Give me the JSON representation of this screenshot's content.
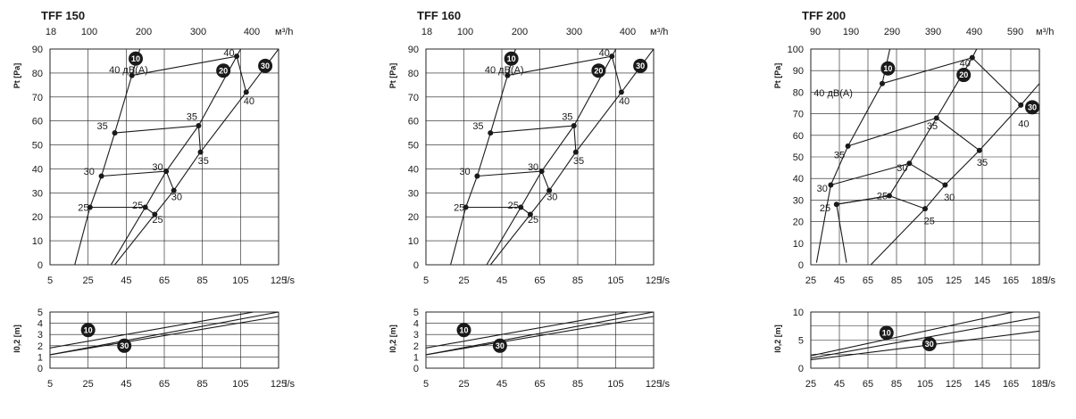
{
  "colors": {
    "ink": "#1a1a1a",
    "grid": "#1a1a1a",
    "paper": "#ffffff"
  },
  "chart_data": [
    {
      "type": "line",
      "title": "TFF 150",
      "xlabel": "l/s",
      "x2label": "м³/h",
      "ylabel": "Pt [Pa]",
      "xlim": [
        5,
        125
      ],
      "ylim": [
        0,
        90
      ],
      "xticks": [
        "5",
        "25",
        "45",
        "65",
        "85",
        "105",
        "125"
      ],
      "x2ticks": [
        "18",
        "100",
        "200",
        "300",
        "400"
      ],
      "yticks": [
        "0",
        "10",
        "20",
        "30",
        "40",
        "50",
        "60",
        "70",
        "80",
        "90"
      ],
      "grid": true,
      "annotation": "40 дB(A)",
      "series": [
        {
          "name": "10",
          "points": [
            [
              18,
              0
            ],
            [
              26,
              24
            ],
            [
              32,
              37
            ],
            [
              39,
              55
            ],
            [
              48,
              79
            ],
            [
              56,
              100
            ]
          ]
        },
        {
          "name": "20",
          "points": [
            [
              37,
              0
            ],
            [
              55,
              24
            ],
            [
              66,
              39
            ],
            [
              83,
              58
            ],
            [
              103,
              87
            ],
            [
              112,
              100
            ]
          ]
        },
        {
          "name": "30",
          "points": [
            [
              39,
              0
            ],
            [
              60,
              21
            ],
            [
              70,
              31
            ],
            [
              84,
              47
            ],
            [
              108,
              72
            ],
            [
              125,
              90
            ]
          ]
        }
      ],
      "levels": [
        {
          "label": "25",
          "points": [
            [
              26,
              24
            ],
            [
              55,
              24
            ],
            [
              60,
              21
            ]
          ]
        },
        {
          "label": "30",
          "points": [
            [
              32,
              37
            ],
            [
              66,
              39
            ],
            [
              70,
              31
            ]
          ]
        },
        {
          "label": "35",
          "points": [
            [
              39,
              55
            ],
            [
              83,
              58
            ],
            [
              84,
              47
            ]
          ]
        },
        {
          "label": "40",
          "points": [
            [
              48,
              79
            ],
            [
              103,
              87
            ],
            [
              108,
              72
            ]
          ]
        }
      ],
      "level_labels": [
        {
          "text": "25",
          "x": 22.5,
          "y": 24
        },
        {
          "text": "25",
          "x": 51,
          "y": 25
        },
        {
          "text": "25",
          "x": 61.5,
          "y": 19
        },
        {
          "text": "30",
          "x": 25.5,
          "y": 39
        },
        {
          "text": "30",
          "x": 61.5,
          "y": 41
        },
        {
          "text": "30",
          "x": 71.5,
          "y": 28.5
        },
        {
          "text": "35",
          "x": 32.5,
          "y": 58
        },
        {
          "text": "35",
          "x": 79.5,
          "y": 62
        },
        {
          "text": "35",
          "x": 85.5,
          "y": 43.5
        },
        {
          "text": "40",
          "x": 99,
          "y": 88.5
        },
        {
          "text": "40",
          "x": 109.5,
          "y": 68.5
        }
      ],
      "badges": [
        {
          "text": "10",
          "x": 50,
          "y": 86
        },
        {
          "text": "20",
          "x": 96,
          "y": 81
        },
        {
          "text": "30",
          "x": 118,
          "y": 83
        }
      ],
      "throw": {
        "ylabel": "l0,2 [m]",
        "xlabel": "l/s",
        "xlim": [
          5,
          125
        ],
        "ylim": [
          0,
          5
        ],
        "yticks": [
          "0",
          "1",
          "2",
          "3",
          "4",
          "5"
        ],
        "series": [
          {
            "name": "10",
            "points": [
              [
                5,
                1.8
              ],
              [
                125,
                5.4
              ]
            ]
          },
          {
            "name": "20",
            "points": [
              [
                5,
                1.2
              ],
              [
                125,
                5.0
              ]
            ]
          },
          {
            "name": "30",
            "points": [
              [
                5,
                1.2
              ],
              [
                125,
                4.6
              ]
            ]
          }
        ],
        "badges": [
          {
            "text": "10",
            "x": 25,
            "y": 3.4
          },
          {
            "text": "30",
            "x": 44,
            "y": 2.0
          }
        ]
      }
    },
    {
      "type": "line",
      "title": "TFF 160",
      "xlabel": "l/s",
      "x2label": "м³/h",
      "ylabel": "Pt [Pa]",
      "xlim": [
        5,
        125
      ],
      "ylim": [
        0,
        90
      ],
      "xticks": [
        "5",
        "25",
        "45",
        "65",
        "85",
        "105",
        "125"
      ],
      "x2ticks": [
        "18",
        "100",
        "200",
        "300",
        "400"
      ],
      "yticks": [
        "0",
        "10",
        "20",
        "30",
        "40",
        "50",
        "60",
        "70",
        "80",
        "90"
      ],
      "grid": true,
      "annotation": "40 дB(A)",
      "series": [
        {
          "name": "10",
          "points": [
            [
              18,
              0
            ],
            [
              26,
              24
            ],
            [
              32,
              37
            ],
            [
              39,
              55
            ],
            [
              48,
              79
            ],
            [
              56,
              100
            ]
          ]
        },
        {
          "name": "20",
          "points": [
            [
              37,
              0
            ],
            [
              55,
              24
            ],
            [
              66,
              39
            ],
            [
              83,
              58
            ],
            [
              103,
              87
            ],
            [
              112,
              100
            ]
          ]
        },
        {
          "name": "30",
          "points": [
            [
              39,
              0
            ],
            [
              60,
              21
            ],
            [
              70,
              31
            ],
            [
              84,
              47
            ],
            [
              108,
              72
            ],
            [
              125,
              90
            ]
          ]
        }
      ],
      "levels": [
        {
          "label": "25",
          "points": [
            [
              26,
              24
            ],
            [
              55,
              24
            ],
            [
              60,
              21
            ]
          ]
        },
        {
          "label": "30",
          "points": [
            [
              32,
              37
            ],
            [
              66,
              39
            ],
            [
              70,
              31
            ]
          ]
        },
        {
          "label": "35",
          "points": [
            [
              39,
              55
            ],
            [
              83,
              58
            ],
            [
              84,
              47
            ]
          ]
        },
        {
          "label": "40",
          "points": [
            [
              48,
              79
            ],
            [
              103,
              87
            ],
            [
              108,
              72
            ]
          ]
        }
      ],
      "level_labels": [
        {
          "text": "25",
          "x": 22.5,
          "y": 24
        },
        {
          "text": "25",
          "x": 51,
          "y": 25
        },
        {
          "text": "25",
          "x": 61.5,
          "y": 19
        },
        {
          "text": "30",
          "x": 25.5,
          "y": 39
        },
        {
          "text": "30",
          "x": 61.5,
          "y": 41
        },
        {
          "text": "30",
          "x": 71.5,
          "y": 28.5
        },
        {
          "text": "35",
          "x": 32.5,
          "y": 58
        },
        {
          "text": "35",
          "x": 79.5,
          "y": 62
        },
        {
          "text": "35",
          "x": 85.5,
          "y": 43.5
        },
        {
          "text": "40",
          "x": 99,
          "y": 88.5
        },
        {
          "text": "40",
          "x": 109.5,
          "y": 68.5
        }
      ],
      "badges": [
        {
          "text": "10",
          "x": 50,
          "y": 86
        },
        {
          "text": "20",
          "x": 96,
          "y": 81
        },
        {
          "text": "30",
          "x": 118,
          "y": 83
        }
      ],
      "throw": {
        "ylabel": "l0,2 [m]",
        "xlabel": "l/s",
        "xlim": [
          5,
          125
        ],
        "ylim": [
          0,
          5
        ],
        "yticks": [
          "0",
          "1",
          "2",
          "3",
          "4",
          "5"
        ],
        "series": [
          {
            "name": "10",
            "points": [
              [
                5,
                1.8
              ],
              [
                125,
                5.4
              ]
            ]
          },
          {
            "name": "20",
            "points": [
              [
                5,
                1.2
              ],
              [
                125,
                5.0
              ]
            ]
          },
          {
            "name": "30",
            "points": [
              [
                5,
                1.2
              ],
              [
                125,
                4.6
              ]
            ]
          }
        ],
        "badges": [
          {
            "text": "10",
            "x": 25,
            "y": 3.4
          },
          {
            "text": "30",
            "x": 44,
            "y": 2.0
          }
        ]
      }
    },
    {
      "type": "line",
      "title": "TFF 200",
      "xlabel": "l/s",
      "x2label": "м³/h",
      "ylabel": "Pt [Pa]",
      "xlim": [
        25,
        185
      ],
      "ylim": [
        0,
        100
      ],
      "xticks": [
        "25",
        "45",
        "65",
        "85",
        "105",
        "125",
        "145",
        "165",
        "185"
      ],
      "x2ticks": [
        "90",
        "190",
        "290",
        "390",
        "490",
        "590"
      ],
      "yticks": [
        "0",
        "10",
        "20",
        "30",
        "40",
        "50",
        "60",
        "70",
        "80",
        "90",
        "100"
      ],
      "grid": true,
      "annotation": "40 дB(A)",
      "series": [
        {
          "name": "10",
          "points": [
            [
              29,
              1
            ],
            [
              39,
              37
            ],
            [
              51,
              55
            ],
            [
              75,
              84
            ],
            [
              82,
              105
            ]
          ]
        },
        {
          "name": "20",
          "points": [
            [
              50,
              1
            ],
            [
              43,
              28
            ],
            [
              80,
              32
            ],
            [
              94,
              47
            ],
            [
              113,
              68
            ],
            [
              138,
              96
            ],
            [
              145,
              105
            ]
          ]
        },
        {
          "name": "30",
          "points": [
            [
              67,
              0
            ],
            [
              105,
              26
            ],
            [
              119,
              37
            ],
            [
              143,
              53
            ],
            [
              172,
              74
            ],
            [
              185,
              84
            ]
          ]
        }
      ],
      "levels": [
        {
          "label": "25",
          "points": [
            [
              43,
              28
            ],
            [
              80,
              32
            ],
            [
              105,
              26
            ]
          ]
        },
        {
          "label": "30",
          "points": [
            [
              39,
              37
            ],
            [
              94,
              47
            ],
            [
              119,
              37
            ]
          ]
        },
        {
          "label": "35",
          "points": [
            [
              51,
              55
            ],
            [
              113,
              68
            ],
            [
              143,
              53
            ]
          ]
        },
        {
          "label": "40",
          "points": [
            [
              75,
              84
            ],
            [
              138,
              96
            ],
            [
              172,
              74
            ]
          ]
        }
      ],
      "level_labels": [
        {
          "text": "25",
          "x": 35,
          "y": 26.5
        },
        {
          "text": "25",
          "x": 75,
          "y": 32
        },
        {
          "text": "25",
          "x": 108,
          "y": 20.5
        },
        {
          "text": "30",
          "x": 33,
          "y": 35.5
        },
        {
          "text": "30",
          "x": 89,
          "y": 45
        },
        {
          "text": "30",
          "x": 122,
          "y": 31.5
        },
        {
          "text": "35",
          "x": 45,
          "y": 51
        },
        {
          "text": "35",
          "x": 110,
          "y": 64.5
        },
        {
          "text": "35",
          "x": 145,
          "y": 47.5
        },
        {
          "text": "40",
          "x": 133,
          "y": 93.5
        },
        {
          "text": "40",
          "x": 174,
          "y": 65.5
        }
      ],
      "badges": [
        {
          "text": "10",
          "x": 79,
          "y": 91
        },
        {
          "text": "20",
          "x": 132,
          "y": 88
        },
        {
          "text": "30",
          "x": 180,
          "y": 73
        }
      ],
      "throw": {
        "ylabel": "l0,2 [m]",
        "xlabel": "l/s",
        "xlim": [
          25,
          185
        ],
        "ylim": [
          0,
          10
        ],
        "yticks": [
          "0",
          "5",
          "10"
        ],
        "series": [
          {
            "name": "10",
            "points": [
              [
                25,
                2.2
              ],
              [
                185,
                11.0
              ]
            ]
          },
          {
            "name": "20",
            "points": [
              [
                25,
                1.8
              ],
              [
                185,
                9.1
              ]
            ]
          },
          {
            "name": "30",
            "points": [
              [
                25,
                1.5
              ],
              [
                185,
                6.6
              ]
            ]
          }
        ],
        "badges": [
          {
            "text": "10",
            "x": 78,
            "y": 6.3
          },
          {
            "text": "30",
            "x": 108,
            "y": 4.3
          }
        ]
      }
    }
  ]
}
